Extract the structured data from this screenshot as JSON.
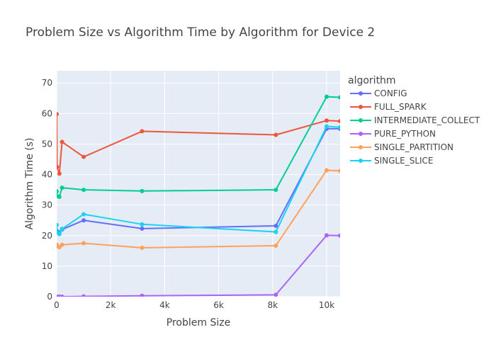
{
  "chart_data": {
    "type": "line",
    "title": "Problem Size vs Algorithm Time by Algorithm for Device 2",
    "xlabel": "Problem Size",
    "ylabel": "Algorithm Time (s)",
    "xlim": [
      0,
      10500
    ],
    "ylim": [
      0,
      74
    ],
    "xticks": [
      0,
      2000,
      4000,
      6000,
      8000,
      10000
    ],
    "xtick_labels": [
      "0",
      "2k",
      "4k",
      "6k",
      "8k",
      "10k"
    ],
    "yticks": [
      0,
      10,
      20,
      30,
      40,
      50,
      60,
      70
    ],
    "ytick_labels": [
      "0",
      "10",
      "20",
      "30",
      "40",
      "50",
      "60",
      "70"
    ],
    "grid": true,
    "legend_title": "algorithm",
    "legend_position": "right",
    "series": [
      {
        "name": "CONFIG",
        "color": "#636efa",
        "x": [
          10,
          100,
          200,
          1000,
          3162,
          8120,
          10000,
          10500
        ],
        "y": [
          21.5,
          21.0,
          22.0,
          25.0,
          22.3,
          23.2,
          55.0,
          55.0
        ]
      },
      {
        "name": "FULL_SPARK",
        "color": "#ef553b",
        "x": [
          0,
          10,
          100,
          200,
          1000,
          3162,
          8120,
          10000,
          10500
        ],
        "y": [
          59.8,
          42.5,
          40.3,
          50.7,
          45.8,
          54.2,
          53.0,
          57.7,
          57.5
        ]
      },
      {
        "name": "INTERMEDIATE_COLLECT",
        "color": "#00cc96",
        "x": [
          0,
          10,
          100,
          200,
          1000,
          3162,
          8120,
          10000,
          10500
        ],
        "y": [
          34.5,
          33.0,
          32.7,
          35.7,
          35.0,
          34.6,
          35.0,
          65.5,
          65.3
        ]
      },
      {
        "name": "PURE_PYTHON",
        "color": "#ab63fa",
        "x": [
          0,
          10,
          100,
          200,
          1000,
          3162,
          8120,
          10000,
          10500
        ],
        "y": [
          0.0,
          0.0,
          0.0,
          0.0,
          0.1,
          0.3,
          0.6,
          20.1,
          20.0
        ]
      },
      {
        "name": "SINGLE_PARTITION",
        "color": "#ffa15a",
        "x": [
          0,
          10,
          100,
          200,
          1000,
          3162,
          8120,
          10000,
          10500
        ],
        "y": [
          17.0,
          16.5,
          16.2,
          17.0,
          17.5,
          16.0,
          16.7,
          41.4,
          41.2
        ]
      },
      {
        "name": "SINGLE_SLICE",
        "color": "#19d3f3",
        "x": [
          0,
          10,
          100,
          200,
          1000,
          3162,
          8120,
          10000,
          10500
        ],
        "y": [
          23.5,
          21.0,
          20.5,
          22.2,
          27.0,
          23.7,
          21.2,
          55.8,
          55.5
        ]
      }
    ]
  }
}
